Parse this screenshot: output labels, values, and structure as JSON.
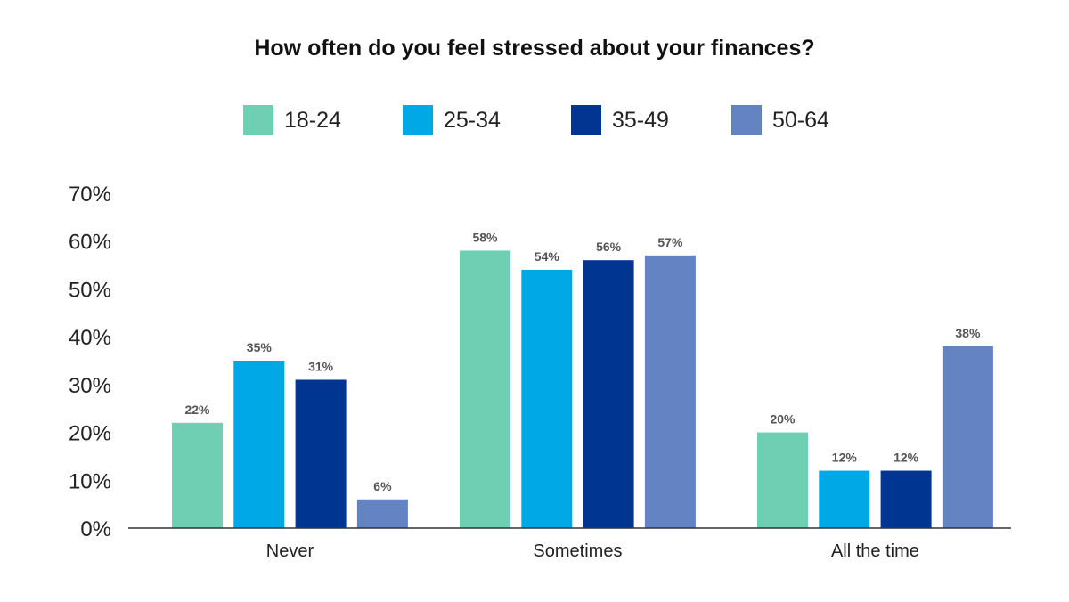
{
  "chart_data": {
    "type": "bar",
    "title": "How often do you feel stressed about your finances?",
    "categories": [
      "Never",
      "Sometimes",
      "All the time"
    ],
    "series": [
      {
        "name": "18-24",
        "values": [
          22,
          58,
          20
        ],
        "color": "#6fcfb3"
      },
      {
        "name": "25-34",
        "values": [
          35,
          54,
          12
        ],
        "color": "#00a8e6"
      },
      {
        "name": "35-49",
        "values": [
          31,
          56,
          12
        ],
        "color": "#003591"
      },
      {
        "name": "50-64",
        "values": [
          6,
          57,
          38
        ],
        "color": "#6383c3"
      }
    ],
    "ylim": [
      0,
      70
    ],
    "yticks": [
      "0%",
      "10%",
      "20%",
      "30%",
      "40%",
      "50%",
      "60%",
      "70%"
    ],
    "value_suffix": "%",
    "legend": "top",
    "grid": false
  }
}
